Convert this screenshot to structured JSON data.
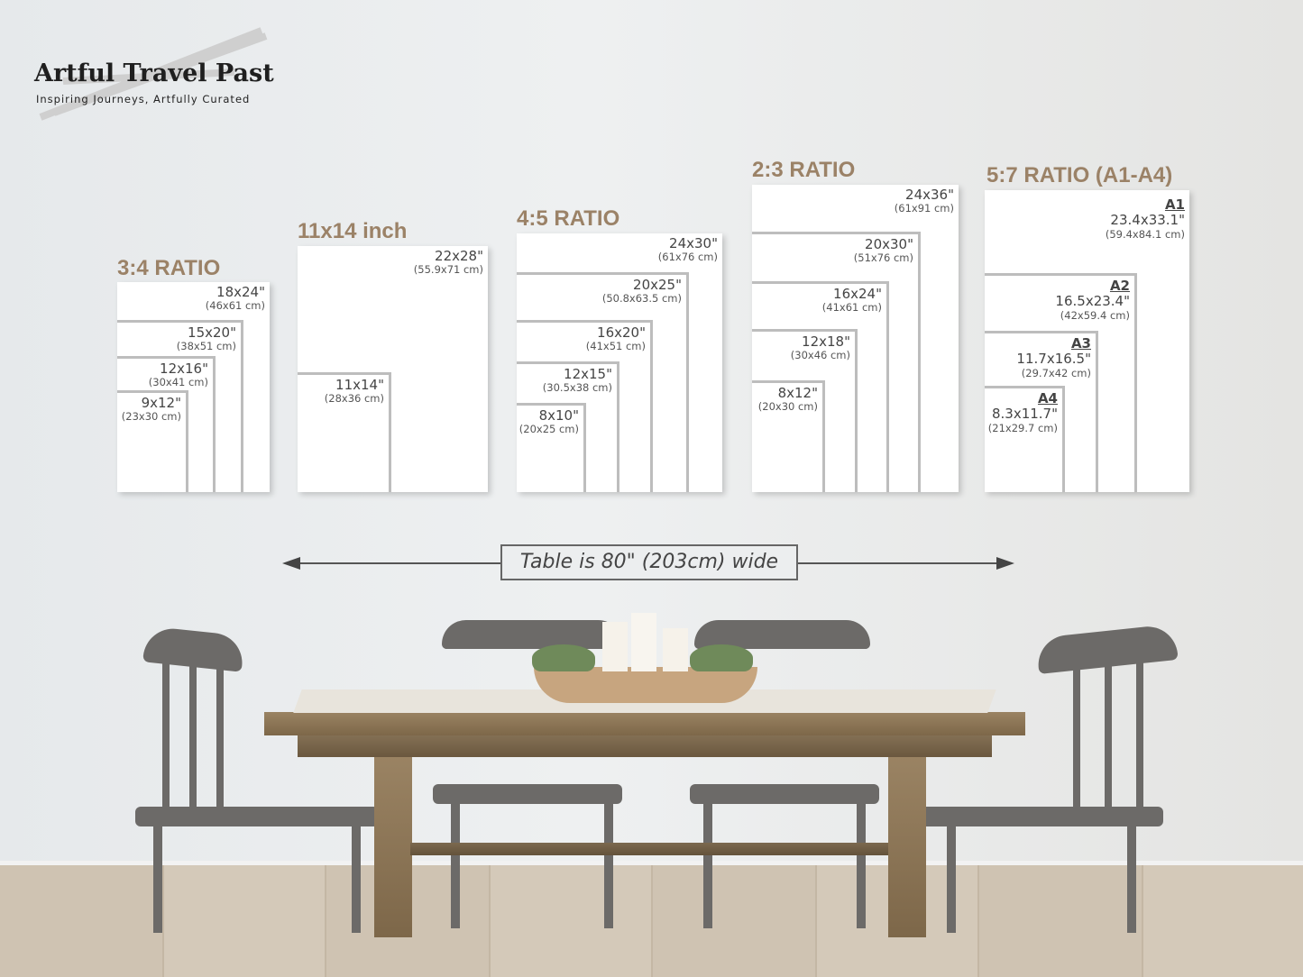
{
  "logo": {
    "title": "Artful Travel Past",
    "tagline": "Inspiring Journeys, Artfully Curated"
  },
  "panels": [
    {
      "title": "3:4 RATIO",
      "sizes": [
        {
          "inches": "18x24\"",
          "cm": "(46x61 cm)"
        },
        {
          "inches": "15x20\"",
          "cm": "(38x51 cm)"
        },
        {
          "inches": "12x16\"",
          "cm": "(30x41 cm)"
        },
        {
          "inches": "9x12\"",
          "cm": "(23x30 cm)"
        }
      ]
    },
    {
      "title": "11x14 inch",
      "sizes": [
        {
          "inches": "22x28\"",
          "cm": "(55.9x71 cm)"
        },
        {
          "inches": "11x14\"",
          "cm": "(28x36 cm)"
        }
      ]
    },
    {
      "title": "4:5 RATIO",
      "sizes": [
        {
          "inches": "24x30\"",
          "cm": "(61x76 cm)"
        },
        {
          "inches": "20x25\"",
          "cm": "(50.8x63.5 cm)"
        },
        {
          "inches": "16x20\"",
          "cm": "(41x51 cm)"
        },
        {
          "inches": "12x15\"",
          "cm": "(30.5x38 cm)"
        },
        {
          "inches": "8x10\"",
          "cm": "(20x25 cm)"
        }
      ]
    },
    {
      "title": "2:3 RATIO",
      "sizes": [
        {
          "inches": "24x36\"",
          "cm": "(61x91 cm)"
        },
        {
          "inches": "20x30\"",
          "cm": "(51x76 cm)"
        },
        {
          "inches": "16x24\"",
          "cm": "(41x61 cm)"
        },
        {
          "inches": "12x18\"",
          "cm": "(30x46 cm)"
        },
        {
          "inches": "8x12\"",
          "cm": "(20x30 cm)"
        }
      ]
    },
    {
      "title": "5:7 RATIO (A1-A4)",
      "sizes": [
        {
          "name": "A1",
          "inches": "23.4x33.1\"",
          "cm": "(59.4x84.1 cm)"
        },
        {
          "name": "A2",
          "inches": "16.5x23.4\"",
          "cm": "(42x59.4 cm)"
        },
        {
          "name": "A3",
          "inches": "11.7x16.5\"",
          "cm": "(29.7x42 cm)"
        },
        {
          "name": "A4",
          "inches": "8.3x11.7\"",
          "cm": "(21x29.7 cm)"
        }
      ]
    }
  ],
  "measure": {
    "label": "Table is 80\" (203cm) wide"
  },
  "colors": {
    "title_accent": "#9b8267",
    "frame_gray": "#bdbdbd",
    "table_wood": "#8a7458",
    "chair_gray": "#6c6a68"
  }
}
